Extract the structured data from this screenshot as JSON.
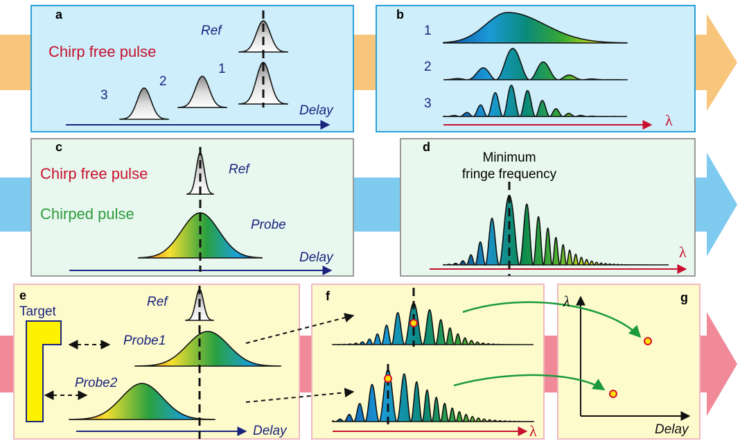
{
  "panels": {
    "a": {
      "label": "a",
      "title": "Chirp free pulse",
      "ref": "Ref",
      "orders": [
        "3",
        "2",
        "1"
      ],
      "axis": "Delay"
    },
    "b": {
      "label": "b",
      "orders": [
        "1",
        "2",
        "3"
      ],
      "axis": "λ"
    },
    "c": {
      "label": "c",
      "ref_title": "Chirp free pulse",
      "ref": "Ref",
      "probe_title": "Chirped pulse",
      "probe": "Probe",
      "axis": "Delay"
    },
    "d": {
      "label": "d",
      "caption": [
        "Minimum",
        "fringe frequency"
      ],
      "axis": "λ"
    },
    "e": {
      "label": "e",
      "target": "Target",
      "ref": "Ref",
      "probes": [
        "Probe1",
        "Probe2"
      ],
      "axis": "Delay"
    },
    "f": {
      "label": "f",
      "axis": "λ"
    },
    "g": {
      "label": "g",
      "y_axis": "λ",
      "x_axis": "Delay"
    }
  }
}
